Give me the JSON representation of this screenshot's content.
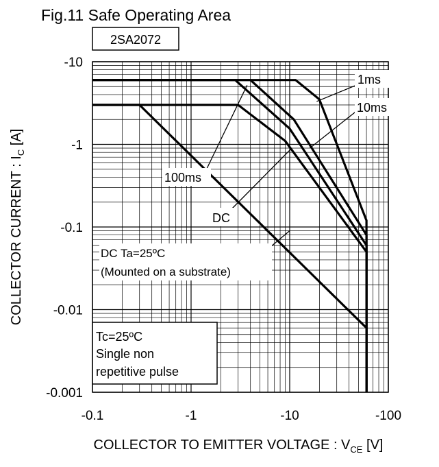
{
  "chart_data": {
    "type": "line",
    "title": "Fig.11 Safe Operating Area",
    "part_number": "2SA2072",
    "xlabel": "COLLECTOR TO EMITTER VOLTAGE : V",
    "xlabel_sub": "CE",
    "xlabel_unit": " [V]",
    "ylabel": "COLLECTOR CURRENT : I",
    "ylabel_sub": "C",
    "ylabel_unit": " [A]",
    "x_scale": "log",
    "y_scale": "log",
    "x_range": [
      -0.1,
      -100
    ],
    "y_range": [
      -0.001,
      -10
    ],
    "x_ticks": [
      -0.1,
      -1,
      -10,
      -100
    ],
    "x_tick_labels": [
      "-0.1",
      "-1",
      "-10",
      "-100"
    ],
    "y_ticks": [
      -10,
      -1,
      -0.1,
      -0.01,
      -0.001
    ],
    "y_tick_labels": [
      "-10",
      "-1",
      "-0.1",
      "-0.01",
      "-0.001"
    ],
    "grid": true,
    "series": [
      {
        "name": "1ms",
        "x": [
          -0.1,
          -11.5,
          -20,
          -60,
          -60
        ],
        "y": [
          -6,
          -6,
          -3.5,
          -0.12,
          -0.001
        ]
      },
      {
        "name": "10ms",
        "x": [
          -0.1,
          -4,
          -11,
          -60,
          -60
        ],
        "y": [
          -6,
          -6,
          -2,
          -0.08,
          -0.001
        ]
      },
      {
        "name": "100ms",
        "x": [
          -0.1,
          -2.8,
          -10,
          -60,
          -60
        ],
        "y": [
          -6,
          -6,
          -1.55,
          -0.06,
          -0.001
        ]
      },
      {
        "name": "DC",
        "x": [
          -0.1,
          -3,
          -9,
          -60,
          -60
        ],
        "y": [
          -3,
          -3,
          -1.1,
          -0.05,
          -0.001
        ]
      },
      {
        "name": "DC Ta=25ºC (Mounted on a substrate)",
        "x": [
          -0.1,
          -0.3,
          -60,
          -60
        ],
        "y": [
          -3,
          -3,
          -0.006,
          -0.001
        ]
      }
    ],
    "annotations": [
      "1ms",
      "10ms",
      "100ms",
      "DC",
      "DC Ta=25ºC",
      "(Mounted on a substrate)"
    ],
    "conditions": [
      "Tc=25ºC",
      "Single non",
      "repetitive pulse"
    ]
  }
}
